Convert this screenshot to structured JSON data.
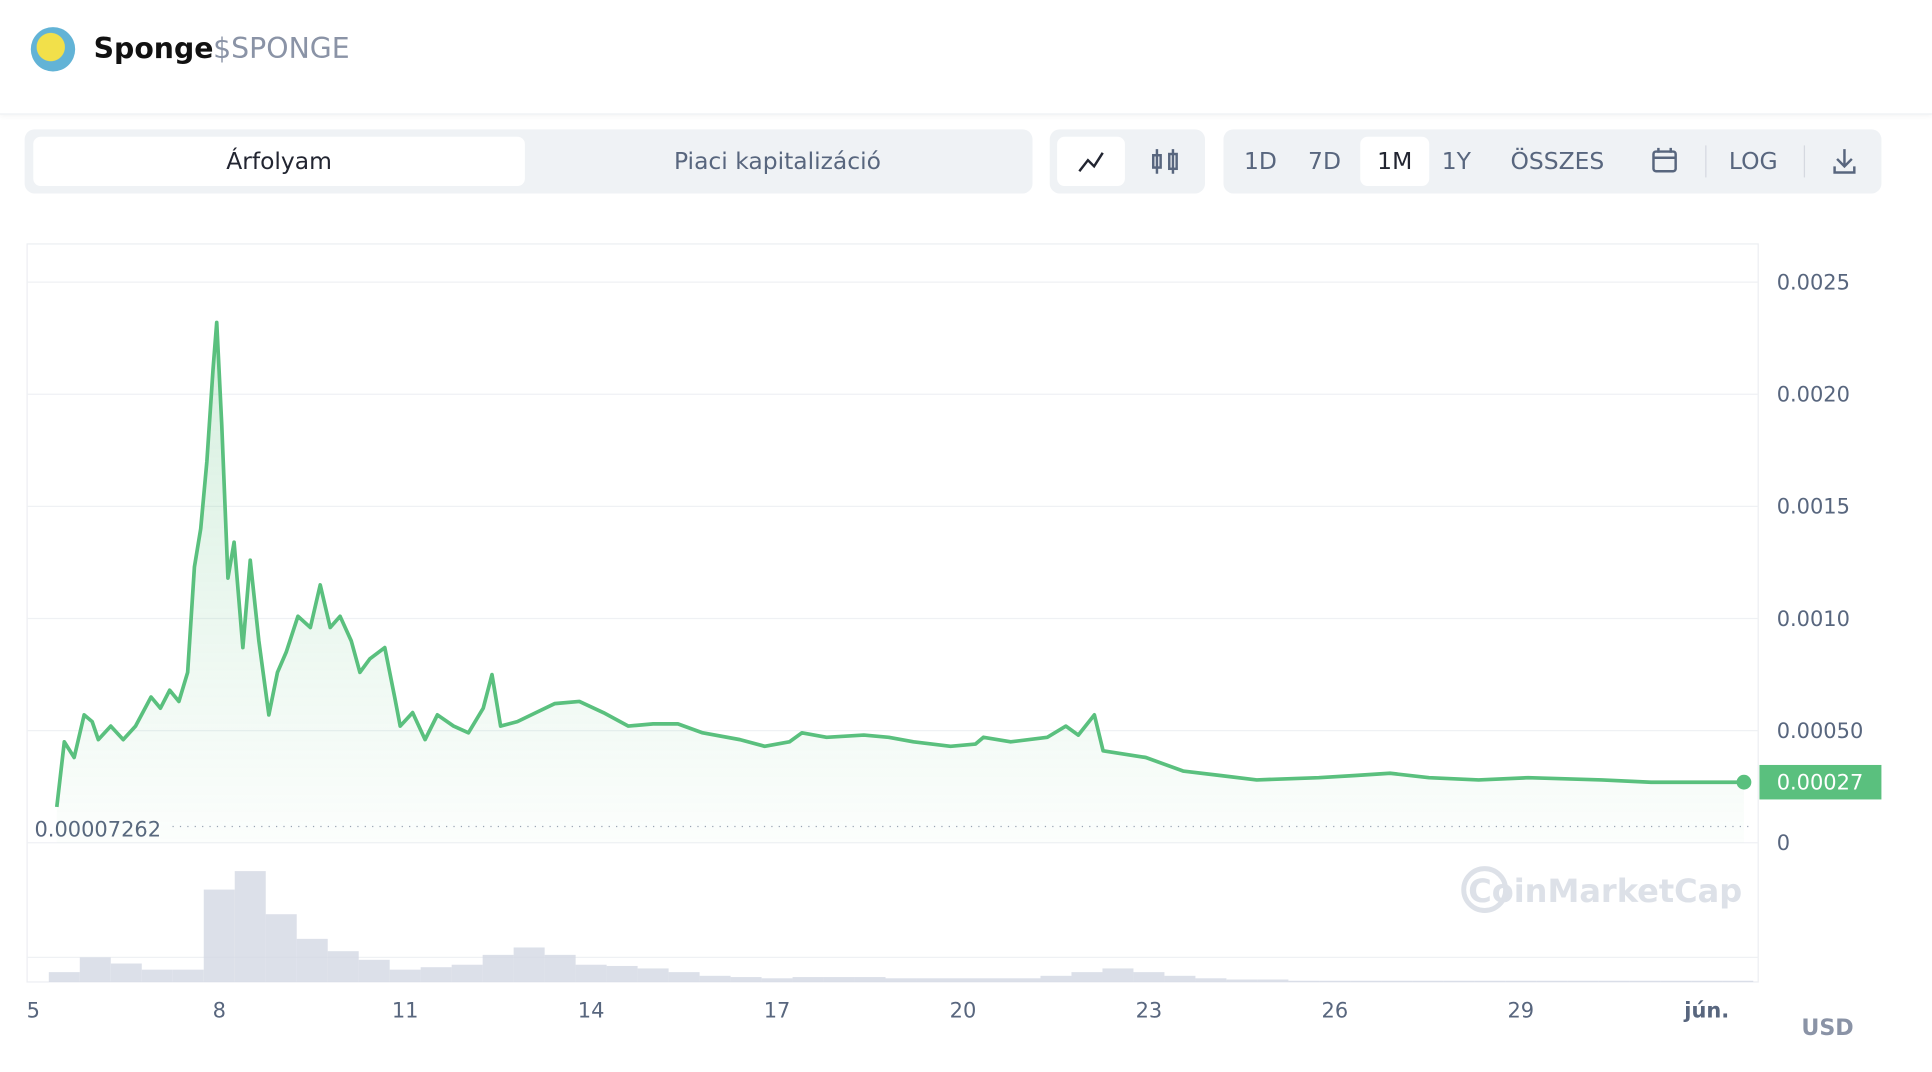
{
  "header": {
    "name": "Sponge",
    "symbol": "$SPONGE"
  },
  "toolbar": {
    "tabs": [
      "Árfolyam",
      "Piaci kapitalizáció"
    ],
    "ranges": [
      "1D",
      "7D",
      "1M",
      "1Y",
      "ÖSSZES"
    ],
    "active_range": 2,
    "log": "LOG"
  },
  "chart_data": {
    "type": "line",
    "color": "#5ac07e",
    "x": [
      5.38,
      5.5,
      5.66,
      5.82,
      5.95,
      6.05,
      6.25,
      6.45,
      6.65,
      6.9,
      7.05,
      7.2,
      7.35,
      7.49,
      7.6,
      7.7,
      7.8,
      7.9,
      7.96,
      8.04,
      8.14,
      8.24,
      8.38,
      8.5,
      8.64,
      8.8,
      8.94,
      9.08,
      9.27,
      9.47,
      9.63,
      9.79,
      9.95,
      10.13,
      10.27,
      10.43,
      10.67,
      10.83,
      10.92,
      11.12,
      11.32,
      11.52,
      11.78,
      12.02,
      12.26,
      12.4,
      12.54,
      12.81,
      13.11,
      13.41,
      13.81,
      14.2,
      14.6,
      15.0,
      15.4,
      15.8,
      16.4,
      16.8,
      17.2,
      17.4,
      17.8,
      18.4,
      18.8,
      19.2,
      19.8,
      20.2,
      20.33,
      20.77,
      21.36,
      21.66,
      21.86,
      22.12,
      22.26,
      22.95,
      23.55,
      24.15,
      24.74,
      25.74,
      26.33,
      26.89,
      27.52,
      28.32,
      29.12,
      30.31,
      31.1,
      32.6
    ],
    "values": [
      0.00016,
      0.00045,
      0.00038,
      0.00057,
      0.00054,
      0.00046,
      0.00052,
      0.00046,
      0.00052,
      0.00065,
      0.0006,
      0.00068,
      0.00063,
      0.00076,
      0.00123,
      0.0014,
      0.0017,
      0.00211,
      0.00232,
      0.00186,
      0.00118,
      0.00134,
      0.00087,
      0.00126,
      0.0009,
      0.00057,
      0.00076,
      0.00085,
      0.00101,
      0.00096,
      0.00115,
      0.00096,
      0.00101,
      0.0009,
      0.00076,
      0.00082,
      0.00087,
      0.00065,
      0.00052,
      0.00058,
      0.00046,
      0.00057,
      0.00052,
      0.00049,
      0.0006,
      0.00075,
      0.00052,
      0.00054,
      0.00058,
      0.00062,
      0.00063,
      0.00058,
      0.00052,
      0.00053,
      0.00053,
      0.00049,
      0.00046,
      0.00043,
      0.00045,
      0.00049,
      0.00047,
      0.00048,
      0.00047,
      0.00045,
      0.00043,
      0.00044,
      0.00047,
      0.00045,
      0.00047,
      0.00052,
      0.00048,
      0.00057,
      0.00041,
      0.00038,
      0.00032,
      0.0003,
      0.00028,
      0.00029,
      0.0003,
      0.00031,
      0.00029,
      0.00028,
      0.00029,
      0.00028,
      0.00027,
      0.00027
    ],
    "xlim": [
      4.9,
      32.83
    ],
    "xticks": [
      5,
      8,
      11,
      14,
      17,
      20,
      23,
      26,
      29,
      {
        "value": 32,
        "label": "jún."
      }
    ],
    "ylim": [
      0,
      0.00267
    ],
    "yticks": [
      0,
      {
        "value": 0.0005,
        "label": "0.00050"
      },
      {
        "value": 0.001,
        "label": "0.0010"
      },
      0.0015,
      {
        "value": 0.002,
        "label": "0.0020"
      },
      0.0025
    ],
    "grid": true,
    "last_price": 0.00027,
    "min_price": 7.262e-05,
    "currency": "USD",
    "watermark": "CoinMarketCap",
    "volume": {
      "color": "#d3d8e3",
      "x": [
        5.5,
        6,
        6.5,
        7,
        7.5,
        8,
        8.5,
        9,
        9.5,
        10,
        10.5,
        11,
        11.5,
        12,
        12.5,
        13,
        13.5,
        14,
        14.5,
        15,
        15.5,
        16,
        16.5,
        17,
        17.5,
        18,
        18.5,
        19,
        19.5,
        20,
        20.5,
        21,
        21.5,
        22,
        22.5,
        23,
        23.5,
        24,
        24.5,
        25,
        25.5,
        26,
        26.5,
        27,
        27.5,
        28,
        28.5,
        29,
        29.5,
        30,
        30.5,
        31,
        31.5,
        32,
        32.5
      ],
      "values": [
        8,
        20,
        15,
        10,
        10,
        75,
        90,
        55,
        35,
        25,
        18,
        10,
        12,
        14,
        22,
        28,
        22,
        14,
        13,
        11,
        8,
        5,
        4,
        3,
        4,
        4,
        4,
        3,
        3,
        3,
        3,
        3,
        5,
        8,
        11,
        8,
        5,
        3,
        2,
        2,
        1,
        1,
        1,
        1,
        1,
        1,
        1,
        1,
        1,
        1,
        1,
        1,
        1,
        1,
        1
      ]
    }
  }
}
